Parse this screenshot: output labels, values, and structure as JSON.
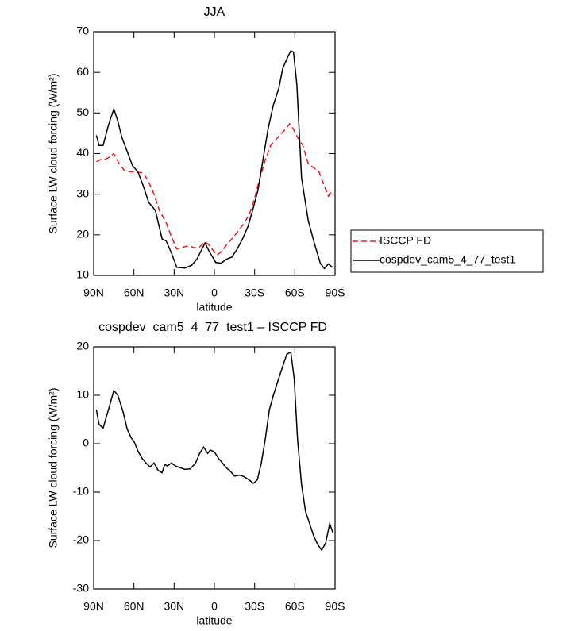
{
  "chart_data": [
    {
      "type": "line",
      "title": "JJA",
      "xlabel": "latitude",
      "ylabel": "Surface LW cloud forcing (W/m²)",
      "xlim": [
        90,
        -90
      ],
      "xticks": [
        {
          "value": 90,
          "label": "90N"
        },
        {
          "value": 60,
          "label": "60N"
        },
        {
          "value": 30,
          "label": "30N"
        },
        0,
        {
          "value": -30,
          "label": "30S"
        },
        {
          "value": -60,
          "label": "60S"
        },
        {
          "value": -90,
          "label": "90S"
        }
      ],
      "ylim": [
        10,
        70
      ],
      "yticks": [
        10,
        20,
        30,
        40,
        50,
        60,
        70
      ],
      "legend": "right",
      "series": [
        {
          "name": "ISCCP FD",
          "color": "#e41a1c",
          "linestyle": "dashed",
          "x": [
            88,
            85,
            82,
            79,
            75,
            71,
            67,
            62,
            57,
            53,
            49,
            45,
            41,
            36,
            32,
            28,
            23,
            19,
            15,
            11,
            7,
            4,
            1,
            -2,
            -5,
            -9,
            -13,
            -18,
            -22,
            -26,
            -30,
            -34,
            -38,
            -42,
            -46,
            -50,
            -53,
            -56,
            -59,
            -62,
            -66,
            -70,
            -74,
            -78,
            -82,
            -85,
            -88
          ],
          "values": [
            38,
            38.5,
            38.5,
            39,
            40,
            37.5,
            35.8,
            35.5,
            35.3,
            35.3,
            33,
            30,
            26,
            23,
            19.5,
            16.5,
            17,
            17.3,
            16.8,
            17,
            18.3,
            17.5,
            16.2,
            15,
            15.8,
            17.5,
            19,
            21,
            22.8,
            25,
            29,
            34,
            38.5,
            42,
            43.5,
            45,
            46,
            47.3,
            46,
            44,
            42,
            37.5,
            36.5,
            35.5,
            32,
            29.5,
            31
          ]
        },
        {
          "name": "cospdev_cam5_4_77_test1",
          "color": "#000000",
          "linestyle": "solid",
          "x": [
            88,
            86,
            83,
            79,
            75,
            72,
            69,
            65,
            61,
            57,
            53,
            49,
            44,
            39,
            36,
            32,
            28,
            22,
            17,
            13,
            7,
            4,
            -1,
            -5,
            -9,
            -13,
            -17,
            -21,
            -25,
            -28.5,
            -32.5,
            -36,
            -40,
            -44,
            -48,
            -51,
            -55,
            -57,
            -59,
            -61.5,
            -65,
            -70,
            -74.5,
            -79,
            -82,
            -85,
            -88
          ],
          "values": [
            44.5,
            42,
            42,
            47,
            51,
            48,
            44,
            40.5,
            37,
            35.5,
            32,
            28,
            26,
            19,
            18.5,
            15.5,
            12,
            11.8,
            12.5,
            14,
            18,
            16,
            13.2,
            13,
            14,
            14.5,
            16.5,
            19,
            22,
            26,
            31,
            38,
            46,
            52,
            56,
            61,
            64,
            65.3,
            65,
            57,
            34,
            23.5,
            18,
            13,
            11.7,
            12.8,
            12
          ]
        }
      ]
    },
    {
      "type": "line",
      "title": "cospdev_cam5_4_77_test1 – ISCCP FD",
      "xlabel": "latitude",
      "ylabel": "Surface LW cloud forcing (W/m²)",
      "xlim": [
        90,
        -90
      ],
      "xticks": [
        {
          "value": 90,
          "label": "90N"
        },
        {
          "value": 60,
          "label": "60N"
        },
        {
          "value": 30,
          "label": "30N"
        },
        0,
        {
          "value": -30,
          "label": "30S"
        },
        {
          "value": -60,
          "label": "60S"
        },
        {
          "value": -90,
          "label": "90S"
        }
      ],
      "ylim": [
        -30,
        20
      ],
      "yticks": [
        -30,
        -20,
        -10,
        0,
        10,
        20
      ],
      "series": [
        {
          "color": "#000000",
          "linestyle": "solid",
          "x": [
            88,
            86,
            83,
            79,
            75,
            72,
            68,
            65,
            62,
            60,
            57,
            54,
            51,
            48,
            45,
            42,
            39,
            37,
            35,
            32,
            29,
            25,
            22,
            18,
            14,
            11,
            8,
            5,
            3,
            0,
            -3,
            -6,
            -9,
            -12,
            -15,
            -19,
            -22,
            -26,
            -29,
            -32,
            -35,
            -38,
            -41,
            -44,
            -48,
            -51,
            -54,
            -57,
            -59.5,
            -62,
            -65,
            -68,
            -71,
            -74,
            -77,
            -80,
            -83,
            -86,
            -88.5
          ],
          "values": [
            7,
            4,
            3.2,
            7,
            11,
            10,
            6.5,
            3,
            1.2,
            0.5,
            -1.5,
            -3,
            -4,
            -4.8,
            -4,
            -5.5,
            -6,
            -4.3,
            -4.6,
            -4,
            -4.6,
            -5,
            -5.3,
            -5.2,
            -4,
            -2,
            -0.7,
            -2,
            -1.3,
            -1.7,
            -3,
            -4,
            -5,
            -5.7,
            -6.7,
            -6.5,
            -6.8,
            -7.5,
            -8.2,
            -7.5,
            -4,
            1,
            7,
            10,
            13.5,
            16,
            18.5,
            18.9,
            13.5,
            1,
            -8.5,
            -14,
            -16.5,
            -19,
            -20.8,
            -22,
            -20.5,
            -16.5,
            -18.5
          ]
        }
      ]
    }
  ]
}
